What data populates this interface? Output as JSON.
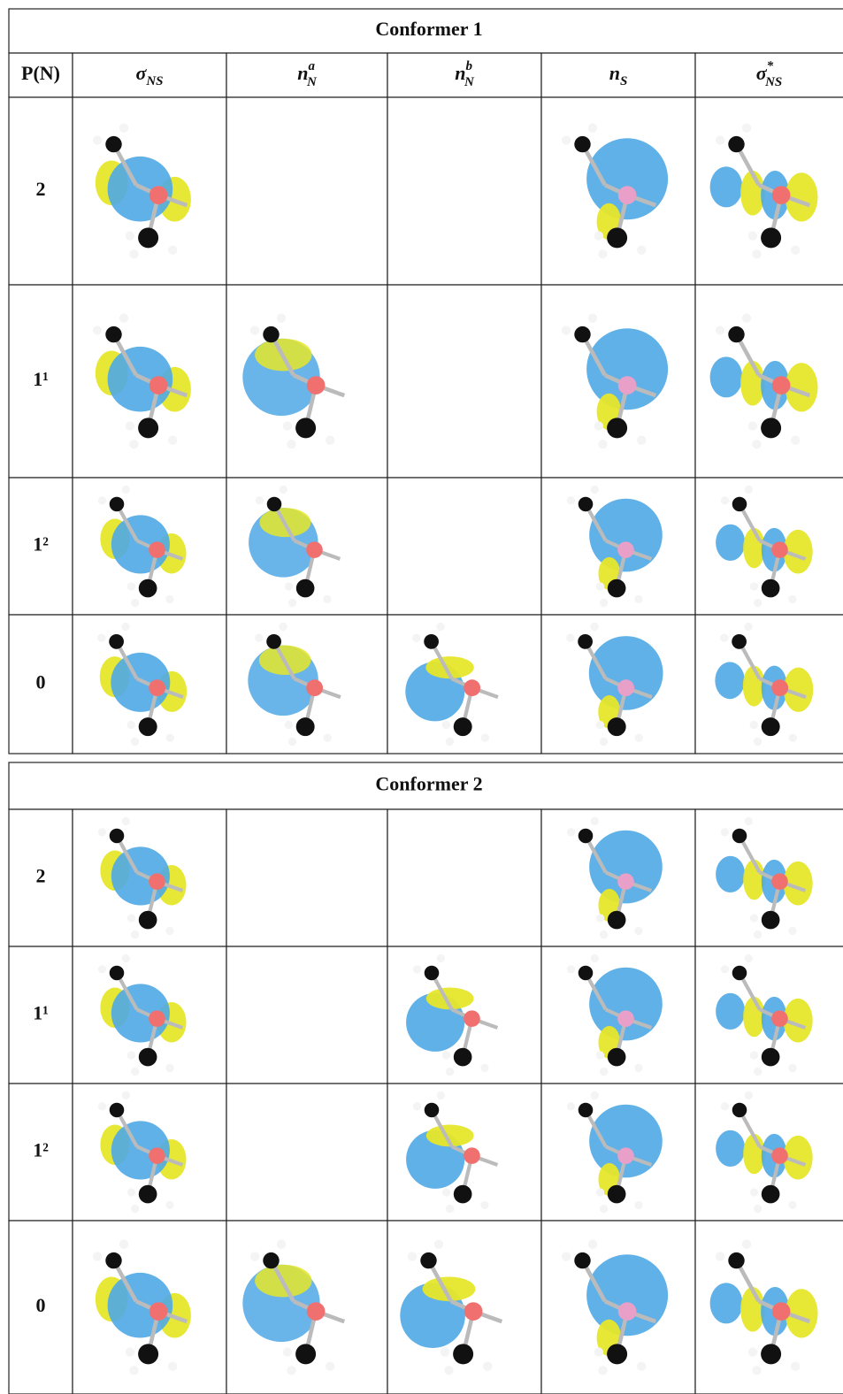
{
  "tables": [
    {
      "title": "Conformer 1",
      "header": [
        {
          "base": "P(N)"
        },
        {
          "base": "σ",
          "sub": "NS"
        },
        {
          "base": "n",
          "sup": "a",
          "sub": "N"
        },
        {
          "base": "n",
          "sup": "b",
          "sub": "N"
        },
        {
          "base": "n",
          "sub": "S"
        },
        {
          "base": "σ",
          "sup": "*",
          "sub": "NS"
        }
      ],
      "rows": [
        "2",
        "1¹",
        "1²",
        "0"
      ]
    },
    {
      "title": "Conformer 2",
      "rows": [
        "2",
        "1¹",
        "1²",
        "0"
      ]
    }
  ]
}
